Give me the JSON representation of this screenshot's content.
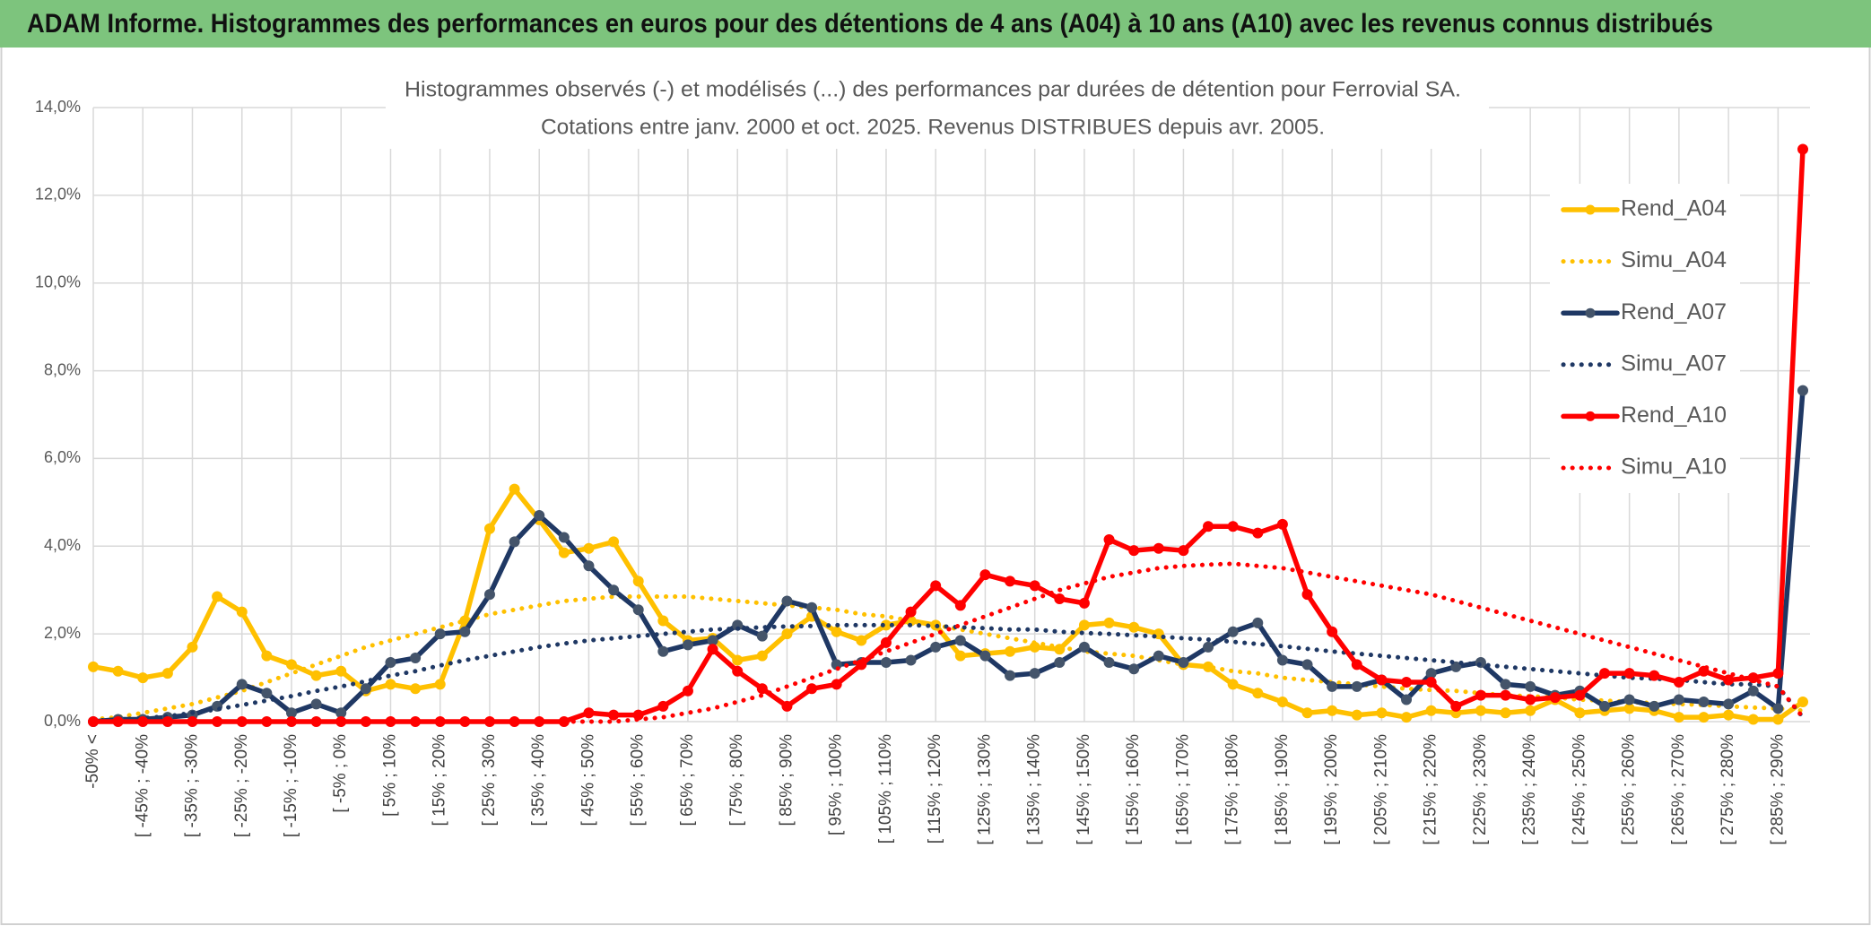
{
  "header": {
    "title": "ADAM Informe. Histogrammes des performances en euros pour des détentions de 4 ans (A04) à 10 ans (A10) avec les revenus connus distribués"
  },
  "chart_data": {
    "type": "line",
    "title": "Histogrammes observés (-) et modélisés (...) des performances par durées de détention pour Ferrovial SA.",
    "subtitle": "Cotations entre janv. 2000 et oct. 2025. Revenus DISTRIBUES depuis avr. 2005.",
    "categories": [
      "-50% <",
      null,
      "[ -45% ; -40%",
      null,
      "[ -35% ; -30%",
      null,
      "[ -25% ; -20%",
      null,
      "[ -15% ; -10%",
      null,
      "[ -5% ; 0%",
      null,
      "[ 5% ; 10%",
      null,
      "[ 15% ; 20%",
      null,
      "[ 25% ; 30%",
      null,
      "[ 35% ; 40%",
      null,
      "[ 45% ; 50%",
      null,
      "[ 55% ; 60%",
      null,
      "[ 65% ; 70%",
      null,
      "[ 75% ; 80%",
      null,
      "[ 85% ; 90%",
      null,
      "[ 95% ; 100%",
      null,
      "[ 105% ; 110%",
      null,
      "[ 115% ; 120%",
      null,
      "[ 125% ; 130%",
      null,
      "[ 135% ; 140%",
      null,
      "[ 145% ; 150%",
      null,
      "[ 155% ; 160%",
      null,
      "[ 165% ; 170%",
      null,
      "[ 175% ; 180%",
      null,
      "[ 185% ; 190%",
      null,
      "[ 195% ; 200%",
      null,
      "[ 205% ; 210%",
      null,
      "[ 215% ; 220%",
      null,
      "[ 225% ; 230%",
      null,
      "[ 235% ; 240%",
      null,
      "[ 245% ; 250%",
      null,
      "[ 255% ; 260%",
      null,
      "[ 265% ; 270%",
      null,
      "[ 275% ; 280%",
      null,
      "[ 285% ; 290%",
      null
    ],
    "ylim": [
      0,
      14
    ],
    "yticks": [
      {
        "value": 0,
        "label": "0,0%"
      },
      {
        "value": 2,
        "label": "2,0%"
      },
      {
        "value": 4,
        "label": "4,0%"
      },
      {
        "value": 6,
        "label": "6,0%"
      },
      {
        "value": 8,
        "label": "8,0%"
      },
      {
        "value": 10,
        "label": "10,0%"
      },
      {
        "value": 12,
        "label": "12,0%"
      },
      {
        "value": 14,
        "label": "14,0%"
      }
    ],
    "grid": true,
    "legend": "right",
    "series": [
      {
        "name": "Rend_A04",
        "color": "#FFC000",
        "line_style": "solid",
        "marker": true,
        "values": [
          1.25,
          1.15,
          1.0,
          1.1,
          1.7,
          2.85,
          2.5,
          1.5,
          1.3,
          1.05,
          1.15,
          0.7,
          0.85,
          0.75,
          0.85,
          2.3,
          4.4,
          5.3,
          4.6,
          3.85,
          3.95,
          4.1,
          3.2,
          2.3,
          1.85,
          1.9,
          1.4,
          1.5,
          2.0,
          2.4,
          2.05,
          1.85,
          2.2,
          2.3,
          2.2,
          1.5,
          1.55,
          1.6,
          1.7,
          1.65,
          2.2,
          2.25,
          2.15,
          2.0,
          1.3,
          1.25,
          0.85,
          0.65,
          0.45,
          0.2,
          0.25,
          0.15,
          0.2,
          0.1,
          0.25,
          0.2,
          0.25,
          0.2,
          0.25,
          0.5,
          0.2,
          0.25,
          0.3,
          0.25,
          0.1,
          0.1,
          0.15,
          0.05,
          0.05,
          0.45
        ]
      },
      {
        "name": "Simu_A04",
        "color": "#FFC000",
        "line_style": "dotted",
        "marker": false,
        "values": [
          0.05,
          0.1,
          0.2,
          0.3,
          0.4,
          0.55,
          0.7,
          0.9,
          1.1,
          1.3,
          1.5,
          1.7,
          1.85,
          2.0,
          2.15,
          2.3,
          2.45,
          2.55,
          2.65,
          2.75,
          2.8,
          2.85,
          2.85,
          2.85,
          2.85,
          2.8,
          2.75,
          2.7,
          2.65,
          2.6,
          2.55,
          2.45,
          2.4,
          2.3,
          2.2,
          2.1,
          2.0,
          1.9,
          1.8,
          1.7,
          1.6,
          1.55,
          1.5,
          1.4,
          1.3,
          1.25,
          1.15,
          1.1,
          1.0,
          0.95,
          0.9,
          0.85,
          0.8,
          0.75,
          0.72,
          0.7,
          0.65,
          0.6,
          0.58,
          0.55,
          0.5,
          0.48,
          0.45,
          0.42,
          0.4,
          0.38,
          0.35,
          0.32,
          0.3,
          0.25
        ]
      },
      {
        "name": "Rend_A07",
        "color": "#1F3864",
        "marker_color": "#44546A",
        "line_style": "solid",
        "marker": true,
        "values": [
          0,
          0.05,
          0.05,
          0.1,
          0.15,
          0.35,
          0.85,
          0.65,
          0.2,
          0.4,
          0.2,
          0.75,
          1.35,
          1.45,
          2.0,
          2.05,
          2.9,
          4.1,
          4.7,
          4.2,
          3.55,
          3.0,
          2.55,
          1.6,
          1.75,
          1.85,
          2.2,
          1.95,
          2.75,
          2.6,
          1.3,
          1.35,
          1.35,
          1.4,
          1.7,
          1.85,
          1.5,
          1.05,
          1.1,
          1.35,
          1.7,
          1.35,
          1.2,
          1.5,
          1.35,
          1.7,
          2.05,
          2.25,
          1.4,
          1.3,
          0.8,
          0.8,
          0.95,
          0.5,
          1.1,
          1.25,
          1.35,
          0.85,
          0.8,
          0.6,
          0.7,
          0.35,
          0.5,
          0.35,
          0.5,
          0.45,
          0.4,
          0.7,
          0.3,
          7.55
        ]
      },
      {
        "name": "Simu_A07",
        "color": "#1F3864",
        "line_style": "dotted",
        "marker": false,
        "values": [
          0.02,
          0.05,
          0.08,
          0.12,
          0.2,
          0.28,
          0.38,
          0.48,
          0.58,
          0.7,
          0.8,
          0.92,
          1.05,
          1.15,
          1.28,
          1.4,
          1.5,
          1.6,
          1.7,
          1.78,
          1.85,
          1.9,
          1.95,
          2.0,
          2.05,
          2.1,
          2.12,
          2.15,
          2.17,
          2.18,
          2.2,
          2.2,
          2.2,
          2.2,
          2.18,
          2.15,
          2.13,
          2.1,
          2.1,
          2.05,
          2.02,
          2.0,
          1.97,
          1.94,
          1.9,
          1.87,
          1.82,
          1.77,
          1.72,
          1.66,
          1.6,
          1.55,
          1.5,
          1.45,
          1.4,
          1.35,
          1.3,
          1.25,
          1.2,
          1.15,
          1.1,
          1.05,
          1.0,
          0.98,
          0.95,
          0.9,
          0.85,
          0.85,
          0.8,
          0.1
        ]
      },
      {
        "name": "Rend_A10",
        "color": "#FF0000",
        "line_style": "solid",
        "marker": true,
        "values": [
          0,
          0,
          0,
          0,
          0,
          0,
          0,
          0,
          0,
          0,
          0,
          0,
          0,
          0,
          0,
          0,
          0,
          0,
          0,
          0,
          0.2,
          0.15,
          0.15,
          0.35,
          0.7,
          1.65,
          1.15,
          0.75,
          0.35,
          0.75,
          0.85,
          1.3,
          1.8,
          2.5,
          3.1,
          2.65,
          3.35,
          3.2,
          3.1,
          2.8,
          2.7,
          4.15,
          3.9,
          3.95,
          3.9,
          4.45,
          4.45,
          4.3,
          4.5,
          2.9,
          2.05,
          1.3,
          0.95,
          0.9,
          0.9,
          0.35,
          0.6,
          0.6,
          0.5,
          0.55,
          0.6,
          1.1,
          1.1,
          1.05,
          0.9,
          1.15,
          0.95,
          1.0,
          1.1,
          13.05
        ]
      },
      {
        "name": "Simu_A10",
        "color": "#FF0000",
        "line_style": "dotted",
        "marker": false,
        "values": [
          0,
          0,
          0,
          0,
          0,
          0,
          0,
          0,
          0,
          0,
          0,
          0,
          0,
          0,
          0,
          0,
          0,
          0,
          0,
          0,
          0,
          0,
          0.05,
          0.1,
          0.2,
          0.3,
          0.45,
          0.6,
          0.8,
          1.0,
          1.2,
          1.4,
          1.6,
          1.8,
          2.0,
          2.2,
          2.4,
          2.6,
          2.8,
          3.0,
          3.15,
          3.3,
          3.4,
          3.5,
          3.55,
          3.58,
          3.6,
          3.55,
          3.5,
          3.4,
          3.3,
          3.2,
          3.1,
          3.0,
          2.9,
          2.75,
          2.6,
          2.45,
          2.3,
          2.15,
          2.0,
          1.85,
          1.7,
          1.55,
          1.4,
          1.25,
          1.1,
          0.95,
          0.8,
          0.1
        ]
      }
    ]
  }
}
